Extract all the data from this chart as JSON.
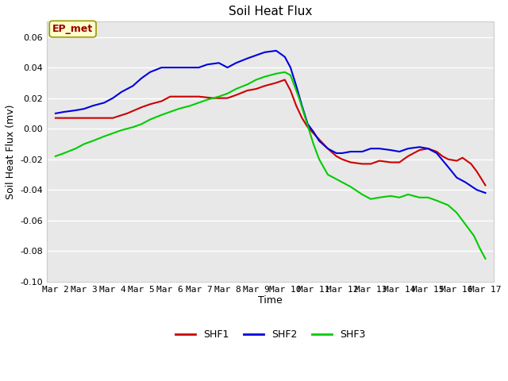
{
  "title": "Soil Heat Flux",
  "xlabel": "Time",
  "ylabel": "Soil Heat Flux (mv)",
  "ylim": [
    -0.1,
    0.07
  ],
  "yticks": [
    -0.1,
    -0.08,
    -0.06,
    -0.04,
    -0.02,
    0.0,
    0.02,
    0.04,
    0.06
  ],
  "bg_color": "#e8e8e8",
  "fig_bg_color": "#ffffff",
  "annotation_text": "EP_met",
  "annotation_box_facecolor": "#ffffcc",
  "annotation_box_edgecolor": "#999900",
  "annotation_text_color": "#990000",
  "legend_entries": [
    "SHF1",
    "SHF2",
    "SHF3"
  ],
  "line_colors": [
    "#cc0000",
    "#0000dd",
    "#00cc00"
  ],
  "line_width": 1.5,
  "x_tick_labels": [
    "Mar 2",
    "Mar 3",
    "Mar 4",
    "Mar 5",
    "Mar 6",
    "Mar 7",
    "Mar 8",
    "Mar 9",
    "Mar 10",
    "Mar 11",
    "Mar 12",
    "Mar 13",
    "Mar 14",
    "Mar 15",
    "Mar 16",
    "Mar 17"
  ],
  "grid_color": "#ffffff",
  "title_fontsize": 11,
  "axis_label_fontsize": 9,
  "tick_fontsize": 8,
  "legend_fontsize": 9,
  "shf1_x": [
    0.0,
    0.3,
    0.7,
    1.0,
    1.5,
    2.0,
    2.5,
    3.0,
    3.3,
    3.7,
    4.0,
    4.5,
    5.0,
    5.5,
    6.0,
    6.3,
    6.7,
    7.0,
    7.3,
    7.7,
    8.0,
    8.2,
    8.4,
    8.6,
    8.8,
    9.0,
    9.2,
    9.5,
    9.8,
    10.0,
    10.3,
    10.7,
    11.0,
    11.3,
    11.7,
    12.0,
    12.3,
    12.5,
    12.7,
    13.0,
    13.3,
    13.5,
    13.7,
    14.0,
    14.2,
    14.5,
    14.7,
    15.0
  ],
  "shf1_y": [
    0.007,
    0.007,
    0.007,
    0.007,
    0.007,
    0.007,
    0.01,
    0.014,
    0.016,
    0.018,
    0.021,
    0.021,
    0.021,
    0.02,
    0.02,
    0.022,
    0.025,
    0.026,
    0.028,
    0.03,
    0.032,
    0.025,
    0.015,
    0.007,
    0.001,
    -0.003,
    -0.007,
    -0.013,
    -0.018,
    -0.02,
    -0.022,
    -0.023,
    -0.023,
    -0.021,
    -0.022,
    -0.022,
    -0.018,
    -0.016,
    -0.014,
    -0.013,
    -0.015,
    -0.018,
    -0.02,
    -0.021,
    -0.019,
    -0.023,
    -0.028,
    -0.037
  ],
  "shf2_x": [
    0.0,
    0.3,
    0.7,
    1.0,
    1.3,
    1.7,
    2.0,
    2.3,
    2.7,
    3.0,
    3.3,
    3.7,
    4.0,
    4.3,
    4.7,
    5.0,
    5.3,
    5.7,
    6.0,
    6.3,
    6.7,
    7.0,
    7.3,
    7.7,
    8.0,
    8.2,
    8.4,
    8.6,
    8.8,
    9.0,
    9.2,
    9.5,
    9.8,
    10.0,
    10.3,
    10.7,
    11.0,
    11.3,
    11.7,
    12.0,
    12.3,
    12.7,
    13.0,
    13.3,
    13.7,
    14.0,
    14.3,
    14.7,
    15.0
  ],
  "shf2_y": [
    0.01,
    0.011,
    0.012,
    0.013,
    0.015,
    0.017,
    0.02,
    0.024,
    0.028,
    0.033,
    0.037,
    0.04,
    0.04,
    0.04,
    0.04,
    0.04,
    0.042,
    0.043,
    0.04,
    0.043,
    0.046,
    0.048,
    0.05,
    0.051,
    0.047,
    0.04,
    0.028,
    0.015,
    0.003,
    -0.002,
    -0.008,
    -0.013,
    -0.016,
    -0.016,
    -0.015,
    -0.015,
    -0.013,
    -0.013,
    -0.014,
    -0.015,
    -0.013,
    -0.012,
    -0.013,
    -0.016,
    -0.025,
    -0.032,
    -0.035,
    -0.04,
    -0.042
  ],
  "shf3_x": [
    0.0,
    0.3,
    0.7,
    1.0,
    1.3,
    1.7,
    2.0,
    2.3,
    2.7,
    3.0,
    3.3,
    3.7,
    4.0,
    4.3,
    4.7,
    5.0,
    5.3,
    5.7,
    6.0,
    6.3,
    6.7,
    7.0,
    7.3,
    7.7,
    8.0,
    8.2,
    8.5,
    8.8,
    9.0,
    9.2,
    9.5,
    9.8,
    10.0,
    10.3,
    10.7,
    11.0,
    11.3,
    11.7,
    12.0,
    12.3,
    12.7,
    13.0,
    13.3,
    13.7,
    14.0,
    14.2,
    14.4,
    14.6,
    14.8,
    15.0
  ],
  "shf3_y": [
    -0.018,
    -0.016,
    -0.013,
    -0.01,
    -0.008,
    -0.005,
    -0.003,
    -0.001,
    0.001,
    0.003,
    0.006,
    0.009,
    0.011,
    0.013,
    0.015,
    0.017,
    0.019,
    0.021,
    0.023,
    0.026,
    0.029,
    0.032,
    0.034,
    0.036,
    0.037,
    0.035,
    0.02,
    0.002,
    -0.01,
    -0.02,
    -0.03,
    -0.033,
    -0.035,
    -0.038,
    -0.043,
    -0.046,
    -0.045,
    -0.044,
    -0.045,
    -0.043,
    -0.045,
    -0.045,
    -0.047,
    -0.05,
    -0.055,
    -0.06,
    -0.065,
    -0.07,
    -0.078,
    -0.085
  ]
}
